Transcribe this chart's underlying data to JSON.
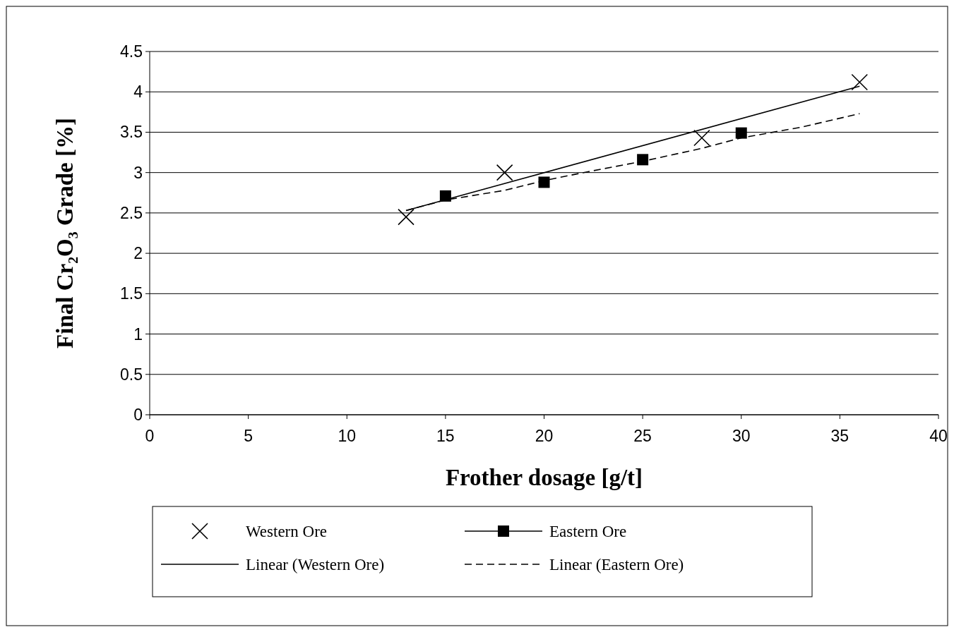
{
  "chart_data": {
    "type": "scatter",
    "xlabel": "Frother dosage [g/t]",
    "ylabel": "Final Cr₂O₃ Grade [%]",
    "xlim": [
      0,
      40
    ],
    "xticks": [
      0,
      5,
      10,
      15,
      20,
      25,
      30,
      35,
      40
    ],
    "ylim": [
      0,
      4.5
    ],
    "yticks": [
      0,
      0.5,
      1,
      1.5,
      2,
      2.5,
      3,
      3.5,
      4,
      4.5
    ],
    "grid": "y",
    "legend": "bottom",
    "series": [
      {
        "name": "Western Ore",
        "marker": "cross",
        "color": "#000000",
        "x": [
          13,
          18,
          28,
          36
        ],
        "values": [
          2.45,
          3.0,
          3.43,
          4.12
        ]
      },
      {
        "name": "Eastern Ore",
        "marker": "square",
        "color": "#000000",
        "x": [
          15,
          20,
          25,
          30
        ],
        "values": [
          2.71,
          2.88,
          3.16,
          3.49
        ]
      },
      {
        "name": "Linear (Western Ore)",
        "type": "line",
        "marker": "none",
        "line_style": "solid",
        "color": "#000000",
        "x": [
          13,
          36
        ],
        "values": [
          2.53,
          4.07
        ]
      },
      {
        "name": "Linear (Eastern Ore)",
        "type": "line",
        "marker": "none",
        "line_style": "dashed",
        "color": "#000000",
        "x": [
          13,
          15,
          18,
          20,
          22,
          25,
          28,
          30,
          33,
          36
        ],
        "values": [
          2.53,
          2.66,
          2.78,
          2.9,
          3.0,
          3.14,
          3.3,
          3.43,
          3.56,
          3.73
        ]
      }
    ]
  }
}
